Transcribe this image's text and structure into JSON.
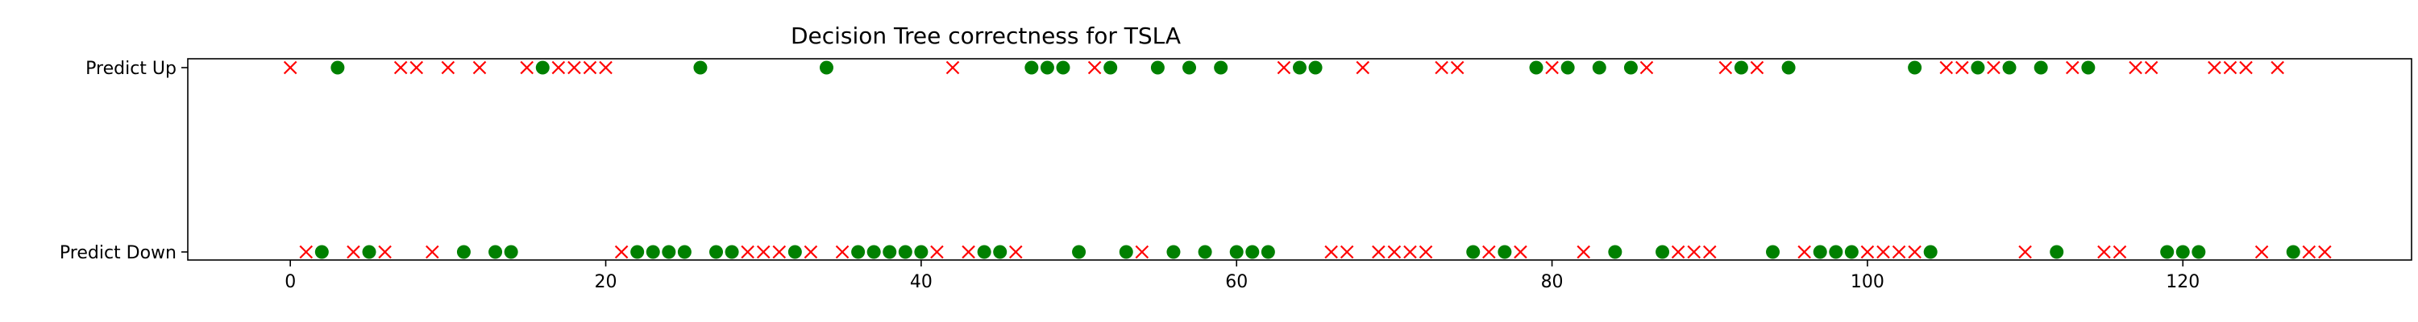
{
  "chart_data": {
    "type": "scatter",
    "title": "Decision Tree correctness for TSLA",
    "xlabel": "",
    "ylabel": "",
    "categories": [
      "Predict Down",
      "Predict Up"
    ],
    "xlim": [
      -6.5,
      134.5
    ],
    "x_ticks": [
      0,
      20,
      40,
      60,
      80,
      100,
      120
    ],
    "grid": false,
    "legend": false,
    "colors": {
      "correct": "#008000",
      "incorrect": "#ff0000"
    },
    "markers": {
      "correct": "circle",
      "incorrect": "x"
    },
    "series": [
      {
        "correct": [
          2,
          5,
          11,
          13,
          14,
          22,
          23,
          24,
          25,
          27,
          28,
          32,
          36,
          37,
          38,
          39,
          40,
          44,
          45,
          50,
          53,
          56,
          58,
          60,
          61,
          62,
          75,
          77,
          84,
          87,
          94,
          97,
          98,
          99,
          104,
          112,
          119,
          120,
          121,
          127
        ],
        "incorrect": [
          1,
          4,
          6,
          9,
          21,
          29,
          30,
          31,
          33,
          35,
          41,
          43,
          46,
          54,
          66,
          67,
          69,
          70,
          71,
          72,
          76,
          78,
          82,
          88,
          89,
          90,
          96,
          100,
          101,
          102,
          103,
          110,
          115,
          116,
          125,
          128,
          129
        ]
      },
      {
        "correct": [
          3,
          16,
          26,
          34,
          47,
          48,
          49,
          52,
          55,
          57,
          59,
          64,
          65,
          79,
          81,
          83,
          85,
          92,
          95,
          103,
          107,
          109,
          111,
          114
        ],
        "incorrect": [
          0,
          7,
          8,
          10,
          12,
          15,
          17,
          18,
          19,
          20,
          42,
          51,
          63,
          68,
          73,
          74,
          80,
          86,
          91,
          93,
          105,
          106,
          108,
          113,
          117,
          118,
          122,
          123,
          124,
          126
        ]
      }
    ]
  }
}
